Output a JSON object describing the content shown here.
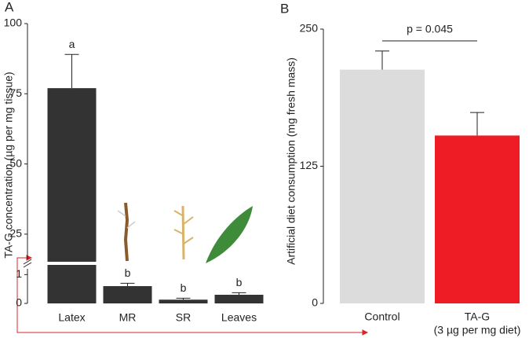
{
  "chart_data": [
    {
      "type": "bar",
      "panel_label": "A",
      "y_label": "TA-G concentration (µg per mg tissue)",
      "categories": [
        "Latex",
        "MR",
        "SR",
        "Leaves"
      ],
      "values": [
        77,
        0.6,
        0.13,
        0.3
      ],
      "errors": [
        12,
        0.1,
        0.05,
        0.07
      ],
      "annotations": [
        "a",
        "b",
        "b",
        "b"
      ],
      "color": "#333333",
      "ylim": [
        0,
        100
      ],
      "ybreak": [
        1.2,
        16
      ],
      "yticks": [
        0,
        1,
        25,
        50,
        75,
        100
      ]
    },
    {
      "type": "bar",
      "panel_label": "B",
      "y_label": "Artificial diet consumption (mg fresh mass)",
      "categories": [
        "Control",
        "TA-G"
      ],
      "category_note": "(3 µg per mg diet)",
      "values": [
        213,
        153
      ],
      "errors": [
        17,
        21
      ],
      "colors": [
        "#dcdcdc",
        "#ee1c25"
      ],
      "annotation": "p = 0.045",
      "ylim": [
        0,
        250
      ],
      "yticks": [
        0,
        125,
        250
      ]
    }
  ]
}
